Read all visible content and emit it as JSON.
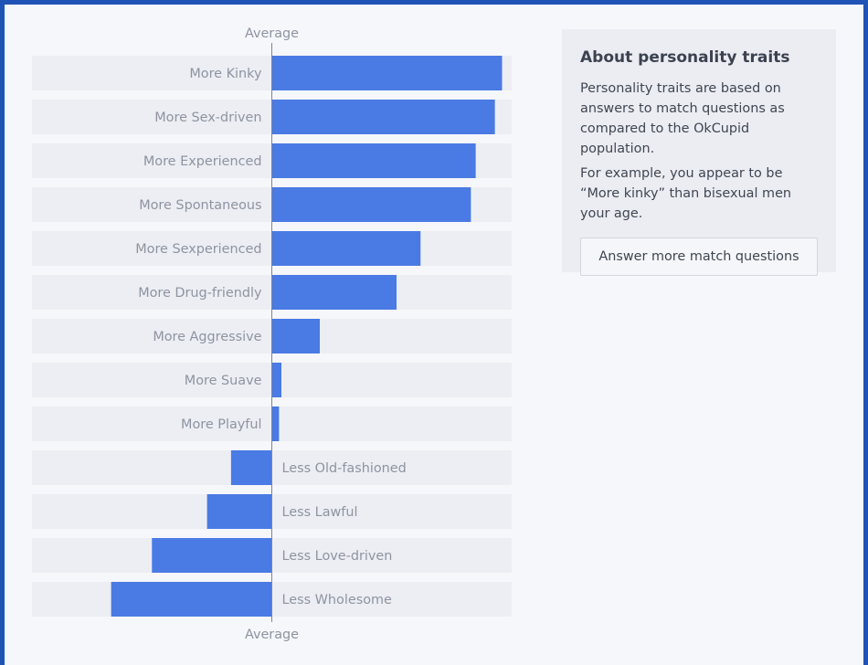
{
  "chart_data": {
    "type": "bar",
    "orientation": "horizontal",
    "baseline_label": "Average",
    "categories": [
      "More Kinky",
      "More Sex-driven",
      "More Experienced",
      "More Spontaneous",
      "More Sexperienced",
      "More Drug-friendly",
      "More Aggressive",
      "More Suave",
      "More Playful",
      "Less Old-fashioned",
      "Less Lawful",
      "Less Love-driven",
      "Less Wholesome"
    ],
    "values": [
      96,
      93,
      85,
      83,
      62,
      52,
      20,
      4,
      3,
      -17,
      -27,
      -50,
      -67
    ],
    "xlim": [
      -100,
      100
    ],
    "bar_color": "#4a7ae3",
    "track_color": "#eceef3"
  },
  "info_card": {
    "title": "About personality traits",
    "paragraph1": "Personality traits are based on answers to match questions as compared to the OkCupid population.",
    "paragraph2": "For example, you appear to be “More kinky” than bisexual men your age.",
    "button_label": "Answer more match questions"
  }
}
